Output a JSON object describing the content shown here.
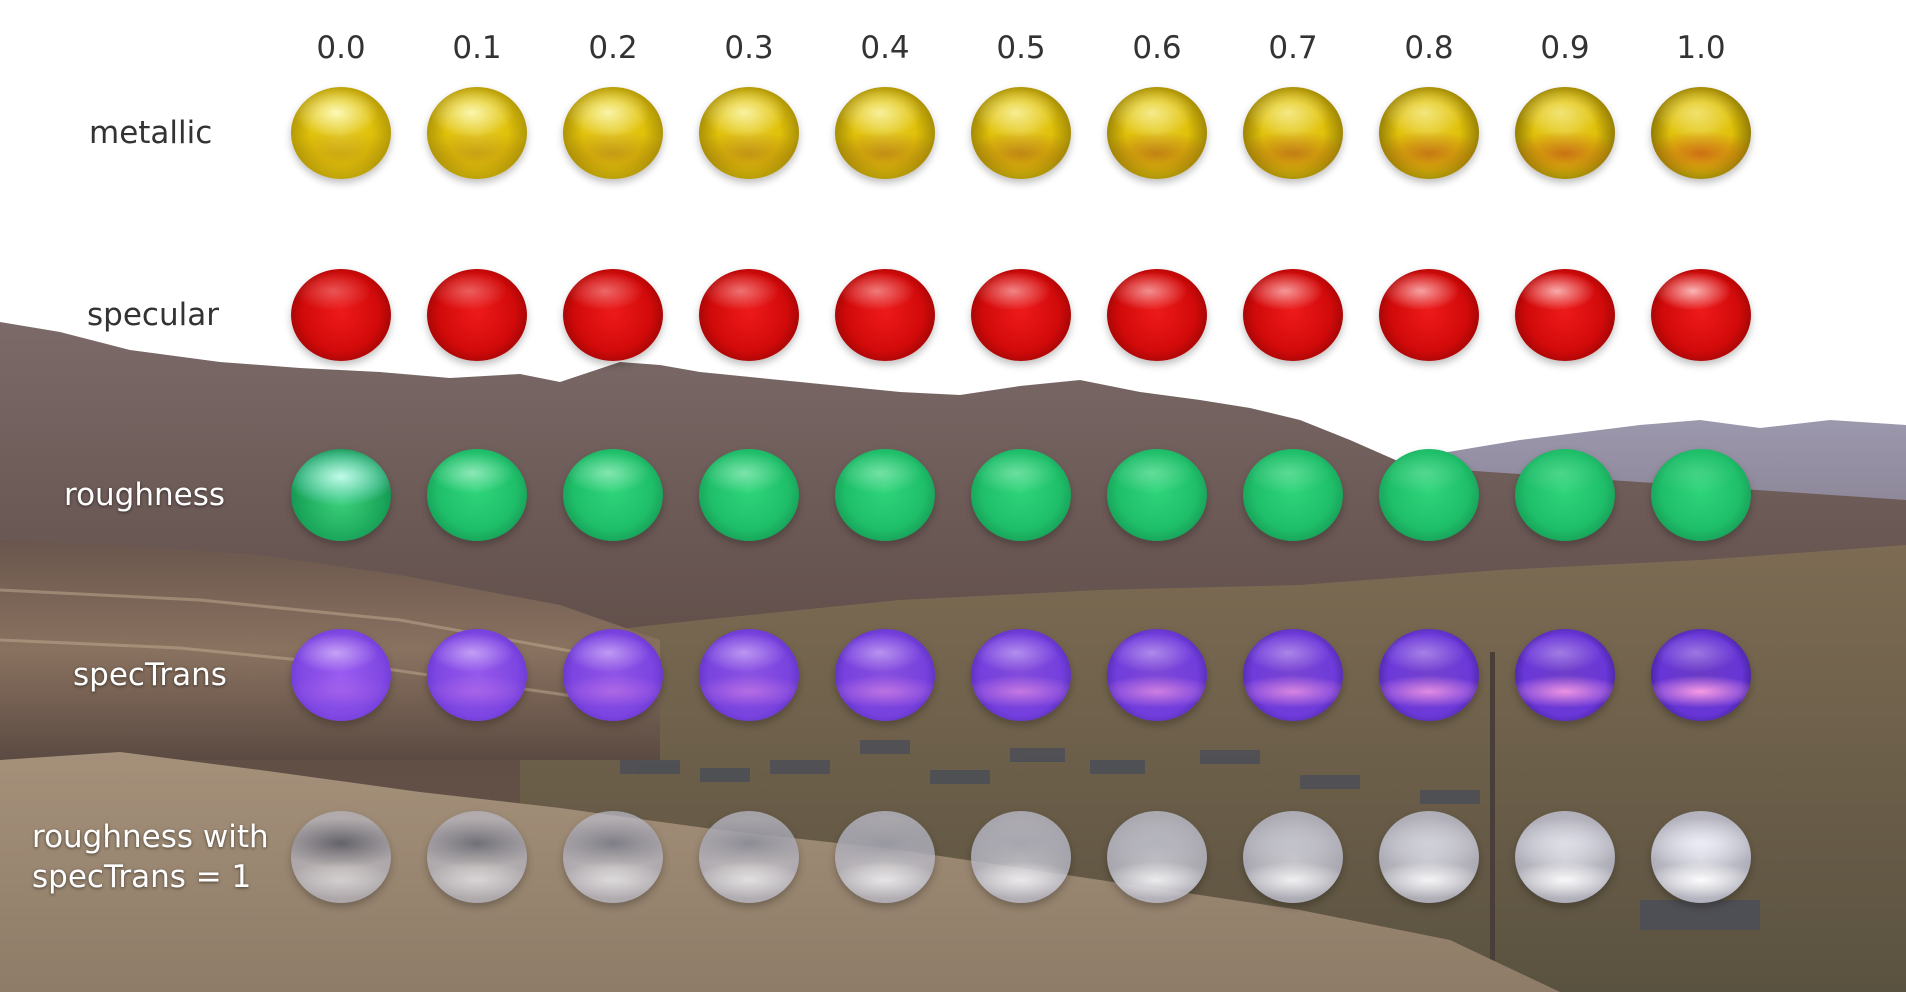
{
  "columns": [
    "0.0",
    "0.1",
    "0.2",
    "0.3",
    "0.4",
    "0.5",
    "0.6",
    "0.7",
    "0.8",
    "0.9",
    "1.0"
  ],
  "rows": [
    {
      "label": "metallic",
      "material": "metallic",
      "base_color": "#e0c10a",
      "on_photo": false
    },
    {
      "label": "specular",
      "material": "specular",
      "base_color": "#d20a0a",
      "on_photo": false
    },
    {
      "label": "roughness",
      "material": "roughness",
      "base_color": "#1fbf6a",
      "on_photo": true
    },
    {
      "label": "specTrans",
      "material": "specTrans",
      "base_color": "#9b5cf0",
      "on_photo": true
    },
    {
      "label": "roughness with\nspecTrans = 1",
      "material": "roughness-spectrans",
      "base_color": "#e8e8f0",
      "on_photo": true
    }
  ],
  "background": {
    "sky": "#ffffff",
    "far_mountains": "#8d8ba0",
    "near_mountains": "#6d5a55",
    "valley": "#7a6850",
    "rocks": "#a38f78"
  }
}
